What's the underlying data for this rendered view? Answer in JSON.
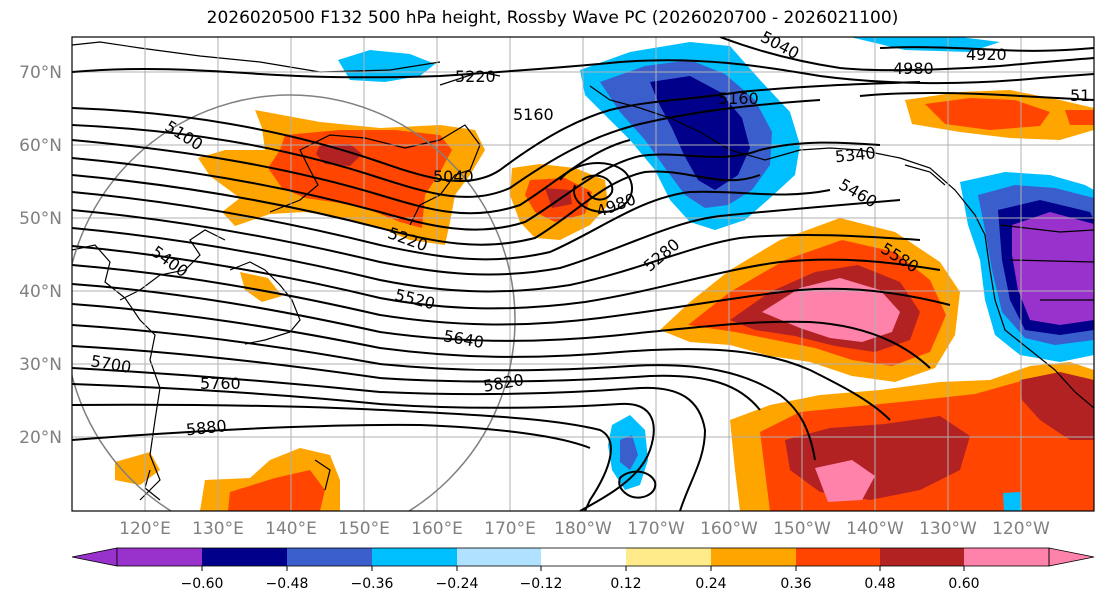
{
  "figure": {
    "title": "2026020500 F132 500 hPa height, Rossby Wave PC (2026020700 - 2026021100)"
  },
  "axes": {
    "lat_labels": [
      "70°N",
      "60°N",
      "50°N",
      "40°N",
      "30°N",
      "20°N"
    ],
    "lon_labels": [
      "120°E",
      "130°E",
      "140°E",
      "150°E",
      "160°E",
      "170°E",
      "180°W",
      "170°W",
      "160°W",
      "150°W",
      "140°W",
      "130°W",
      "120°W"
    ]
  },
  "contour_labels": [
    "5220",
    "5160",
    "5040",
    "4920",
    "4980",
    "5160",
    "51",
    "5100",
    "5040",
    "4980",
    "5340",
    "5460",
    "5220",
    "5280",
    "5580",
    "5400",
    "5520",
    "5640",
    "5700",
    "5760",
    "5820",
    "5880"
  ],
  "colorbar": {
    "colors": [
      "#9932cc",
      "#00008b",
      "#3a5fcd",
      "#00bfff",
      "#b0e2ff",
      "#ffffff",
      "#ffeb8a",
      "#ffa500",
      "#ff4500",
      "#b22222",
      "#ff82ab"
    ],
    "tick_labels": [
      "−0.60",
      "−0.48",
      "−0.36",
      "−0.24",
      "−0.12",
      "0.12",
      "0.24",
      "0.36",
      "0.48",
      "0.60"
    ]
  }
}
